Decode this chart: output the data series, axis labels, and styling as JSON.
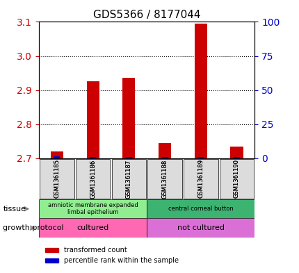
{
  "title": "GDS5366 / 8177044",
  "samples": [
    "GSM1361185",
    "GSM1361186",
    "GSM1361187",
    "GSM1361188",
    "GSM1361189",
    "GSM1361190"
  ],
  "red_values": [
    2.72,
    2.925,
    2.935,
    2.745,
    3.095,
    2.735
  ],
  "blue_values": [
    2.705,
    2.703,
    2.703,
    2.703,
    2.704,
    2.703
  ],
  "blue_pct": [
    2,
    2,
    2,
    2,
    2,
    2
  ],
  "ylim_left": [
    2.7,
    3.1
  ],
  "ylim_right": [
    0,
    100
  ],
  "yticks_left": [
    2.7,
    2.8,
    2.9,
    3.0,
    3.1
  ],
  "yticks_right": [
    0,
    25,
    50,
    75,
    100
  ],
  "tissue_groups": [
    {
      "label": "amniotic membrane expanded\nlimbal epithelium",
      "start": 0,
      "end": 3,
      "color": "#90EE90"
    },
    {
      "label": "central corneal button",
      "start": 3,
      "end": 6,
      "color": "#3CB371"
    }
  ],
  "protocol_groups": [
    {
      "label": "cultured",
      "start": 0,
      "end": 3,
      "color": "#FF69B4"
    },
    {
      "label": "not cultured",
      "start": 3,
      "end": 6,
      "color": "#DA70D6"
    }
  ],
  "bar_color_red": "#CC0000",
  "bar_color_blue": "#0000CC",
  "axis_color_left": "#CC0000",
  "axis_color_right": "#0000CC",
  "bg_color": "#DCDCDC"
}
